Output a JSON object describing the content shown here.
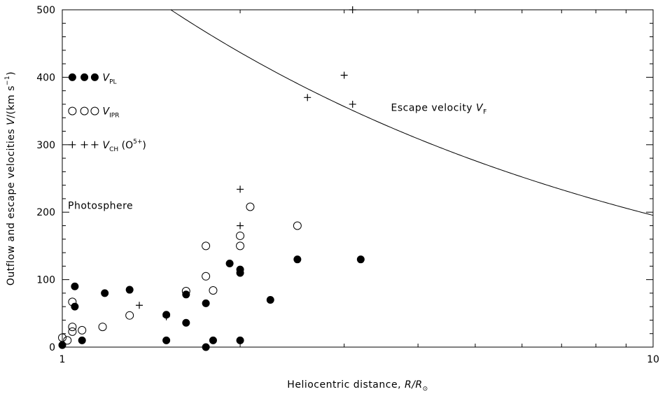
{
  "chart_data": {
    "type": "scatter",
    "xscale": "log",
    "xlim": [
      1,
      10
    ],
    "ylim": [
      0,
      500
    ],
    "x_ticks": [
      1,
      10
    ],
    "x_tick_labels": [
      "1",
      "10"
    ],
    "y_ticks": [
      0,
      100,
      200,
      300,
      400,
      500
    ],
    "y_tick_labels": [
      "0",
      "100",
      "200",
      "300",
      "400",
      "500"
    ],
    "xlabel": {
      "prefix": "Heliocentric distance, ",
      "math": "R/R",
      "sub": "⊙"
    },
    "ylabel": {
      "prefix": "Outflow and escape velocities ",
      "math": "V",
      "suffix": "/(km s",
      "sup": "−1",
      "close": ")"
    },
    "grid": false,
    "legend_placement": "top-left",
    "series": [
      {
        "name": "V_PL",
        "label_main": "V",
        "label_sub": "PL",
        "marker": "filled-circle",
        "points": [
          [
            1.0,
            3
          ],
          [
            1.05,
            90
          ],
          [
            1.05,
            60
          ],
          [
            1.08,
            10
          ],
          [
            1.18,
            80
          ],
          [
            1.3,
            85
          ],
          [
            1.5,
            10
          ],
          [
            1.5,
            48
          ],
          [
            1.62,
            78
          ],
          [
            1.62,
            36
          ],
          [
            1.75,
            65
          ],
          [
            1.75,
            0
          ],
          [
            1.8,
            10
          ],
          [
            1.92,
            124
          ],
          [
            2.0,
            115
          ],
          [
            2.0,
            110
          ],
          [
            2.0,
            10
          ],
          [
            2.25,
            70
          ],
          [
            2.5,
            130
          ],
          [
            3.2,
            130
          ]
        ]
      },
      {
        "name": "V_IPR",
        "label_main": "V",
        "label_sub": "IPR",
        "marker": "open-circle",
        "points": [
          [
            1.0,
            14
          ],
          [
            1.02,
            10
          ],
          [
            1.04,
            67
          ],
          [
            1.04,
            30
          ],
          [
            1.04,
            23
          ],
          [
            1.08,
            25
          ],
          [
            1.17,
            30
          ],
          [
            1.3,
            47
          ],
          [
            1.62,
            83
          ],
          [
            1.75,
            150
          ],
          [
            1.75,
            105
          ],
          [
            1.8,
            84
          ],
          [
            2.0,
            165
          ],
          [
            2.0,
            150
          ],
          [
            2.08,
            208
          ],
          [
            2.5,
            180
          ]
        ]
      },
      {
        "name": "V_CH (O5+)",
        "label_main": "V",
        "label_sub": "CH",
        "label_rest": " (O",
        "label_sup": "5+",
        "label_close": ")",
        "marker": "plus",
        "points": [
          [
            1.35,
            62
          ],
          [
            1.5,
            45
          ],
          [
            2.0,
            234
          ],
          [
            2.0,
            180
          ],
          [
            2.6,
            370
          ],
          [
            3.0,
            403
          ],
          [
            3.1,
            360
          ],
          [
            3.1,
            500
          ]
        ]
      }
    ],
    "escape_velocity": {
      "label_prefix": "Escape velocity ",
      "label_math": "V",
      "label_sub": "F",
      "formula": "V = 617.7 / sqrt(R)",
      "coefficient": 617.7
    },
    "photosphere": {
      "x": 1,
      "label": "Photosphere",
      "style": "dash-dot"
    }
  }
}
